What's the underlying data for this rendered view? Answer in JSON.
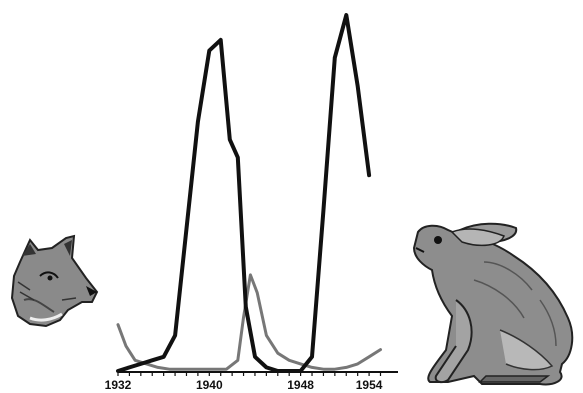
{
  "chart_data": {
    "type": "line",
    "title": "",
    "xlabel": "",
    "ylabel": "",
    "x": [
      1932,
      1933,
      1934,
      1935,
      1936,
      1937,
      1938,
      1939,
      1940,
      1941,
      1942,
      1943,
      1944,
      1945,
      1946,
      1947,
      1948,
      1949,
      1950,
      1951,
      1952,
      1953,
      1954,
      1955
    ],
    "xticks": [
      "1932",
      "1940",
      "1948",
      "1954"
    ],
    "xlim": [
      1932,
      1955
    ],
    "ylim": [
      0,
      100
    ],
    "grid": false,
    "legend": "none",
    "series": [
      {
        "color": "#111111",
        "x": [
          1932,
          1933,
          1934,
          1935,
          1936,
          1937,
          1938,
          1939,
          1940,
          1941,
          1941.8,
          1942.5,
          1943.2,
          1944,
          1945,
          1946,
          1947,
          1948,
          1949,
          1950,
          1951,
          1952,
          1953,
          1954
        ],
        "values": [
          0,
          1,
          2,
          3,
          4,
          10,
          40,
          70,
          90,
          93,
          65,
          60,
          18,
          4,
          1,
          0,
          0,
          0,
          4,
          45,
          88,
          100,
          80,
          55
        ]
      },
      {
        "color": "#777777",
        "x": [
          1932,
          1932.7,
          1933.5,
          1934.5,
          1935.5,
          1936.5,
          1937.5,
          1938.5,
          1939.5,
          1940.5,
          1941.5,
          1942.5,
          1943,
          1943.6,
          1944.2,
          1945,
          1946,
          1947,
          1948,
          1949,
          1950,
          1951,
          1952,
          1953,
          1954,
          1955
        ],
        "values": [
          13,
          7,
          3,
          2,
          1,
          0.5,
          0.5,
          0.5,
          0.5,
          0.5,
          0.5,
          3,
          15,
          27,
          22,
          10,
          5,
          3,
          2,
          1,
          0.5,
          0.5,
          1,
          2,
          4,
          6
        ]
      }
    ]
  },
  "icons": {
    "predator": "lynx-head-icon",
    "prey": "hare-icon"
  }
}
